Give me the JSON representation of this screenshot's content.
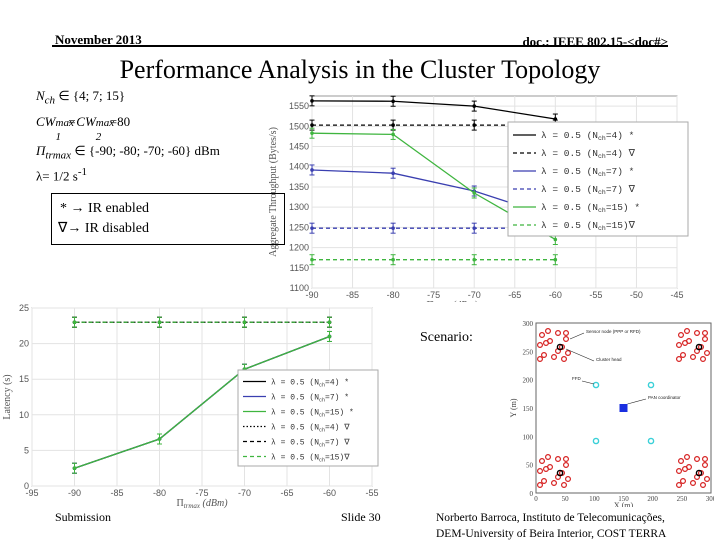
{
  "header": {
    "date": "November 2013",
    "doc": "doc.: IEEE 802.15-<doc#>"
  },
  "title": "Performance Analysis in the Cluster Topology",
  "params": {
    "nch": "N",
    "nch_sub": "ch",
    "nch_rest": " ∈ {4; 7; 15}",
    "cw_pre": "CW",
    "cw_sup1": "max",
    "cw_sub1": "1",
    "cw_mid": "=CW",
    "cw_sup2": "max",
    "cw_sub2": "2",
    "cw_val": "=80",
    "pi": "Π",
    "pi_sub": "trmax",
    "pi_rest": " ∈ {-90; -80; -70; -60} dBm",
    "lambda": "λ= 1/2 s",
    "lambda_sup": "-1"
  },
  "legend_box": {
    "line1": "* → IR enabled",
    "line2": "∇→ IR disabled"
  },
  "scenario_label": "Scenario:",
  "scenario_inset": {
    "sensor": "Sensor node (PPP or RFD)",
    "cluster": "Cluster head",
    "ffd": "FFD",
    "pan": "PAN coordinator",
    "y_label": "Y (m)",
    "x_label": "X (m)",
    "y_ticks": [
      "300",
      "250",
      "200",
      "150",
      "100",
      "50",
      "0"
    ],
    "x_ticks": [
      "0",
      "50",
      "100",
      "150",
      "200",
      "250",
      "300"
    ]
  },
  "footer": {
    "left": "Submission",
    "center": "Slide 30",
    "right1": "Norberto Barroca, Instituto de Telecomunicações,",
    "right2": "DEM-University of Beira Interior, COST TERRA"
  },
  "colors": {
    "black": "#000000",
    "blue": "#3a3fb0",
    "green": "#3fb53f",
    "scenario_red": "#d62020",
    "pan_blue": "#1a2fe0",
    "ffd_cyan": "#3ad0d8"
  },
  "chart_data": [
    {
      "type": "line",
      "ylabel": "Aggregate Throughput (Bytes/s)",
      "xlabel_main": "Π",
      "xlabel_sub": "trmax",
      "xlabel_unit": "(dBm)",
      "x": [
        -90,
        -80,
        -70,
        -60
      ],
      "xlim": [
        -90,
        -45
      ],
      "ylim": [
        1100,
        1575
      ],
      "xticks": [
        "-90",
        "-85",
        "-80",
        "-75",
        "-70",
        "-65",
        "-60",
        "-55",
        "-50",
        "-45"
      ],
      "yticks": [
        "1100",
        "1150",
        "1200",
        "1250",
        "1300",
        "1350",
        "1400",
        "1450",
        "1500",
        "1550"
      ],
      "series": [
        {
          "name": "λ = 0.5 (N",
          "name_sub": "ch",
          "name_end": "=4) *",
          "color": "black",
          "dash": "solid",
          "values": [
            1563,
            1562,
            1550,
            1518
          ]
        },
        {
          "name": "λ = 0.5 (N",
          "name_sub": "ch",
          "name_end": "=4) ∇",
          "color": "black",
          "dash": "dashed",
          "values": [
            1503,
            1503,
            1503,
            1503
          ]
        },
        {
          "name": "λ = 0.5 (N",
          "name_sub": "ch",
          "name_end": "=7) *",
          "color": "blue",
          "dash": "solid",
          "values": [
            1392,
            1384,
            1340,
            1275
          ]
        },
        {
          "name": "λ = 0.5 (N",
          "name_sub": "ch",
          "name_end": "=7) ∇",
          "color": "blue",
          "dash": "dashed",
          "values": [
            1248,
            1248,
            1248,
            1248
          ]
        },
        {
          "name": "λ = 0.5 (N",
          "name_sub": "ch",
          "name_end": "=15) *",
          "color": "green",
          "dash": "solid",
          "values": [
            1483,
            1480,
            1335,
            1220
          ]
        },
        {
          "name": "λ = 0.5 (N",
          "name_sub": "ch",
          "name_end": "=15)∇",
          "color": "green",
          "dash": "dashed",
          "values": [
            1170,
            1170,
            1170,
            1170
          ]
        }
      ]
    },
    {
      "type": "line",
      "ylabel": "Latency (s)",
      "xlabel_main": "Π",
      "xlabel_sub": "trmax",
      "xlabel_unit": "(dBm)",
      "x": [
        -90,
        -80,
        -70,
        -60
      ],
      "xlim": [
        -95,
        -55
      ],
      "ylim": [
        0,
        25
      ],
      "xticks": [
        "-95",
        "-90",
        "-85",
        "-80",
        "-75",
        "-70",
        "-65",
        "-60",
        "-55"
      ],
      "yticks": [
        "0",
        "5",
        "10",
        "15",
        "20",
        "25"
      ],
      "series": [
        {
          "name": "λ = 0.5 (N",
          "name_sub": "ch",
          "name_end": "=4) *",
          "color": "black",
          "dash": "solid",
          "values": [
            2.5,
            6.6,
            16.4,
            21
          ]
        },
        {
          "name": "λ = 0.5 (N",
          "name_sub": "ch",
          "name_end": "=7) *",
          "color": "blue",
          "dash": "solid",
          "values": [
            2.5,
            6.6,
            16.4,
            21
          ]
        },
        {
          "name": "λ = 0.5 (N",
          "name_sub": "ch",
          "name_end": "=15) *",
          "color": "green",
          "dash": "solid",
          "values": [
            2.5,
            6.6,
            16.4,
            21
          ]
        },
        {
          "name": "λ = 0.5 (N",
          "name_sub": "ch",
          "name_end": "=4) ∇",
          "color": "black",
          "dash": "dotted",
          "values": [
            23,
            23,
            23,
            23
          ]
        },
        {
          "name": "λ = 0.5 (N",
          "name_sub": "ch",
          "name_end": "=7) ∇",
          "color": "black",
          "dash": "dashed",
          "values": [
            23,
            23,
            23,
            23
          ]
        },
        {
          "name": "λ = 0.5 (N",
          "name_sub": "ch",
          "name_end": "=15)∇",
          "color": "green",
          "dash": "dashed",
          "values": [
            23,
            23,
            23,
            23
          ]
        }
      ]
    }
  ]
}
